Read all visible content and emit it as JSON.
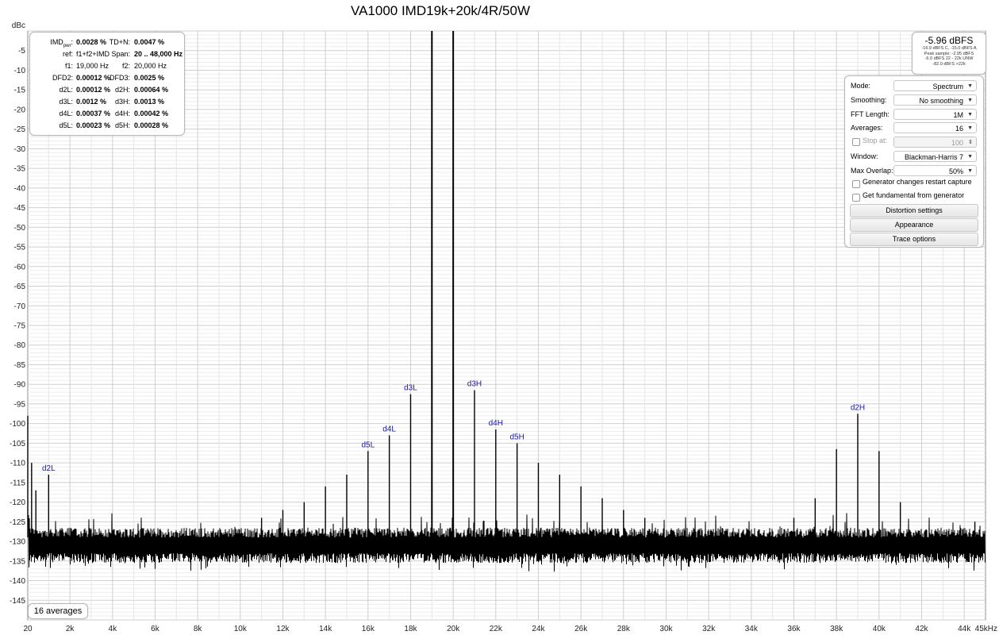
{
  "chart_data": {
    "type": "line",
    "title": "VA1000 IMD19k+20k/4R/50W",
    "ylabel": "dBc",
    "xlabel": "",
    "ylim": [
      -150,
      0
    ],
    "xlim": [
      20,
      45000
    ],
    "y_ticks": [
      "-5",
      "-10",
      "-15",
      "-20",
      "-25",
      "-30",
      "-35",
      "-40",
      "-45",
      "-50",
      "-55",
      "-60",
      "-65",
      "-70",
      "-75",
      "-80",
      "-85",
      "-90",
      "-95",
      "-100",
      "-105",
      "-110",
      "-115",
      "-120",
      "-125",
      "-130",
      "-135",
      "-140",
      "-145"
    ],
    "x_ticks": [
      {
        "v": 20,
        "label": "20"
      },
      {
        "v": 2000,
        "label": "2k"
      },
      {
        "v": 4000,
        "label": "4k"
      },
      {
        "v": 6000,
        "label": "6k"
      },
      {
        "v": 8000,
        "label": "8k"
      },
      {
        "v": 10000,
        "label": "10k"
      },
      {
        "v": 12000,
        "label": "12k"
      },
      {
        "v": 14000,
        "label": "14k"
      },
      {
        "v": 16000,
        "label": "16k"
      },
      {
        "v": 18000,
        "label": "18k"
      },
      {
        "v": 20000,
        "label": "20k"
      },
      {
        "v": 22000,
        "label": "22k"
      },
      {
        "v": 24000,
        "label": "24k"
      },
      {
        "v": 26000,
        "label": "26k"
      },
      {
        "v": 28000,
        "label": "28k"
      },
      {
        "v": 30000,
        "label": "30k"
      },
      {
        "v": 32000,
        "label": "32k"
      },
      {
        "v": 34000,
        "label": "34k"
      },
      {
        "v": 36000,
        "label": "36k"
      },
      {
        "v": 38000,
        "label": "38k"
      },
      {
        "v": 40000,
        "label": "40k"
      },
      {
        "v": 42000,
        "label": "42k"
      },
      {
        "v": 44000,
        "label": "44k"
      },
      {
        "v": 45000,
        "label": "45kHz"
      }
    ],
    "noise_floor": -131,
    "series": [
      {
        "color": "#000000",
        "peaks": [
          {
            "x": 20,
            "y": -98
          },
          {
            "x": 200,
            "y": -110
          },
          {
            "x": 400,
            "y": -117
          },
          {
            "x": 1000,
            "y": -113
          },
          {
            "x": 11000,
            "y": -124
          },
          {
            "x": 12000,
            "y": -122
          },
          {
            "x": 13000,
            "y": -120
          },
          {
            "x": 14000,
            "y": -116
          },
          {
            "x": 15000,
            "y": -113
          },
          {
            "x": 16000,
            "y": -107
          },
          {
            "x": 17000,
            "y": -103
          },
          {
            "x": 18000,
            "y": -92.5
          },
          {
            "x": 19000,
            "y": 0
          },
          {
            "x": 20000,
            "y": 0
          },
          {
            "x": 21000,
            "y": -91.5
          },
          {
            "x": 22000,
            "y": -101.5
          },
          {
            "x": 23000,
            "y": -105
          },
          {
            "x": 24000,
            "y": -110
          },
          {
            "x": 25000,
            "y": -113
          },
          {
            "x": 26000,
            "y": -116
          },
          {
            "x": 27000,
            "y": -119
          },
          {
            "x": 28000,
            "y": -122
          },
          {
            "x": 29000,
            "y": -124
          },
          {
            "x": 36000,
            "y": -124
          },
          {
            "x": 37000,
            "y": -119
          },
          {
            "x": 38000,
            "y": -106.5
          },
          {
            "x": 39000,
            "y": -97.5
          },
          {
            "x": 40000,
            "y": -107
          },
          {
            "x": 41000,
            "y": -120
          },
          {
            "x": 44500,
            "y": -125
          }
        ]
      }
    ],
    "annotations": [
      {
        "label": "d2L",
        "x": 1000,
        "y": -113
      },
      {
        "label": "d5L",
        "x": 16000,
        "y": -107
      },
      {
        "label": "d4L",
        "x": 17000,
        "y": -103
      },
      {
        "label": "d3L",
        "x": 18000,
        "y": -92.5
      },
      {
        "label": "d3H",
        "x": 21000,
        "y": -91.5
      },
      {
        "label": "d4H",
        "x": 22000,
        "y": -101.5
      },
      {
        "label": "d5H",
        "x": 23000,
        "y": -105
      },
      {
        "label": "d2H",
        "x": 39000,
        "y": -97.5
      }
    ],
    "annotation_color": "#1a1aa6",
    "grid": true
  },
  "stats": {
    "rows": [
      {
        "l1": "IMD",
        "l1sub": "pwr",
        "v1": "0.0028 %",
        "l2": "TD+N:",
        "v2": "0.0047 %"
      },
      {
        "l1": "ref:",
        "v1": "f1+f2+IMD",
        "l2": "Span:",
        "v2": "20 .. 48,000 Hz"
      },
      {
        "l1": "f1:",
        "v1": "19,000 Hz",
        "l2": "f2:",
        "v2": "20,000 Hz"
      },
      {
        "l1": "DFD2:",
        "v1": "0.00012 %",
        "l2": "DFD3:",
        "v2": "0.0025 %"
      },
      {
        "l1": "d2L:",
        "v1": "0.00012 %",
        "l2": "d2H:",
        "v2": "0.00064 %"
      },
      {
        "l1": "d3L:",
        "v1": "0.0012 %",
        "l2": "d3H:",
        "v2": "0.0013 %"
      },
      {
        "l1": "d4L:",
        "v1": "0.00037 %",
        "l2": "d4H:",
        "v2": "0.00042 %"
      },
      {
        "l1": "d5L:",
        "v1": "0.00023 %",
        "l2": "d5H:",
        "v2": "0.00028 %"
      }
    ]
  },
  "peak_meter": {
    "main": "-5.96 dBFS",
    "lines": [
      "-16.9 dBFS C, -15.0 dBFS A",
      "Peak sample: -2.95 dBFS",
      "-6.0 dBFS 22 - 22k UNW",
      "-82.0 dBFS >22k"
    ]
  },
  "settings": {
    "mode_label": "Mode:",
    "mode_value": "Spectrum",
    "smoothing_label": "Smoothing:",
    "smoothing_value": "No smoothing",
    "fft_label": "FFT Length:",
    "fft_value": "1M",
    "averages_label": "Averages:",
    "averages_value": "16",
    "stop_label": "Stop at:",
    "stop_value": "100",
    "window_label": "Window:",
    "window_value": "Blackman-Harris 7",
    "overlap_label": "Max Overlap:",
    "overlap_value": "50%",
    "chk_restart": "Generator changes restart capture",
    "chk_fundamental": "Get fundamental from generator",
    "btn_distortion": "Distortion settings",
    "btn_appearance": "Appearance",
    "btn_trace": "Trace options"
  },
  "averages_badge": "16 averages"
}
